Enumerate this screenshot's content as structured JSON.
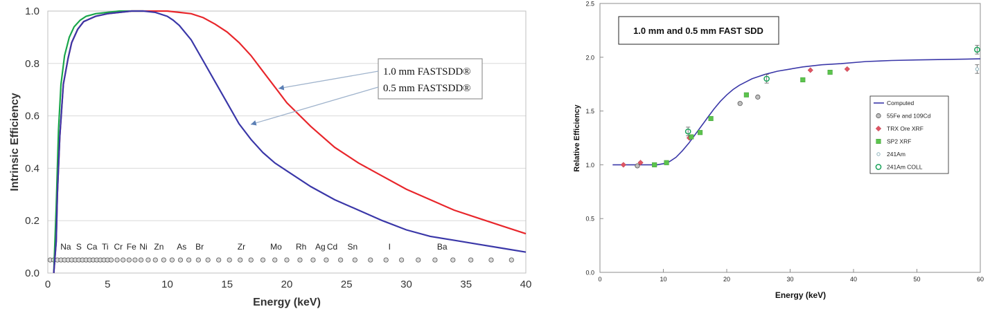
{
  "chart_data": [
    {
      "type": "line",
      "title": "",
      "xlabel": "Energy (keV)",
      "ylabel": "Intrinsic Efficiency",
      "xlim": [
        0,
        40
      ],
      "ylim": [
        0,
        1.0
      ],
      "x_ticks": [
        0,
        5,
        10,
        15,
        20,
        25,
        30,
        35,
        40
      ],
      "y_ticks": [
        0.0,
        0.2,
        0.4,
        0.6,
        0.8,
        1.0
      ],
      "x_tick_labels": [
        "0",
        "5",
        "10",
        "15",
        "20",
        "25",
        "30",
        "35",
        "40"
      ],
      "y_tick_labels": [
        "0.0",
        "0.2",
        "0.4",
        "0.6",
        "0.8",
        "1.0"
      ],
      "grid": "horizontal",
      "series": [
        {
          "name": "1.0 mm FASTSDD®",
          "color": "#e8262b",
          "x": [
            0.5,
            0.7,
            0.8,
            1.0,
            1.3,
            1.7,
            2.0,
            2.5,
            3.0,
            4.0,
            5.0,
            6.0,
            7.0,
            8.0,
            9.0,
            10.0,
            11.0,
            12.0,
            13.0,
            14.0,
            15.0,
            16.0,
            17.0,
            18.0,
            19.0,
            20.0,
            22.0,
            24.0,
            26.0,
            28.0,
            30.0,
            32.0,
            34.0,
            36.0,
            38.0,
            40.0
          ],
          "values": [
            0.0,
            0.12,
            0.3,
            0.52,
            0.72,
            0.82,
            0.88,
            0.93,
            0.96,
            0.98,
            0.99,
            0.995,
            1.0,
            1.0,
            1.0,
            1.0,
            0.995,
            0.99,
            0.975,
            0.95,
            0.92,
            0.88,
            0.83,
            0.77,
            0.71,
            0.65,
            0.56,
            0.48,
            0.42,
            0.37,
            0.32,
            0.28,
            0.24,
            0.21,
            0.18,
            0.15
          ]
        },
        {
          "name": "0.5 mm FASTSDD®",
          "color": "#3a37a8",
          "x": [
            0.5,
            0.7,
            0.8,
            1.0,
            1.3,
            1.7,
            2.0,
            2.5,
            3.0,
            4.0,
            5.0,
            6.0,
            7.0,
            8.0,
            9.0,
            10.0,
            10.5,
            11.0,
            12.0,
            13.0,
            14.0,
            15.0,
            16.0,
            17.0,
            18.0,
            19.0,
            20.0,
            22.0,
            24.0,
            26.0,
            28.0,
            30.0,
            32.0,
            34.0,
            36.0,
            38.0,
            40.0
          ],
          "values": [
            0.0,
            0.12,
            0.3,
            0.52,
            0.72,
            0.82,
            0.88,
            0.93,
            0.96,
            0.98,
            0.99,
            0.995,
            1.0,
            1.0,
            0.995,
            0.98,
            0.965,
            0.945,
            0.89,
            0.81,
            0.73,
            0.65,
            0.57,
            0.51,
            0.46,
            0.42,
            0.39,
            0.33,
            0.28,
            0.24,
            0.2,
            0.165,
            0.14,
            0.125,
            0.11,
            0.095,
            0.08
          ]
        },
        {
          "name": "green",
          "color": "#19a64a",
          "x": [
            0.5,
            0.7,
            0.9,
            1.1,
            1.4,
            1.8,
            2.2,
            2.7,
            3.2,
            4.0,
            5.0,
            6.0,
            7.0,
            8.0
          ],
          "values": [
            0.0,
            0.25,
            0.55,
            0.72,
            0.83,
            0.9,
            0.94,
            0.965,
            0.98,
            0.99,
            0.995,
            1.0,
            1.0,
            1.0
          ]
        }
      ],
      "legend_labels": [
        "1.0 mm FASTSDD®",
        "0.5 mm FASTSDD®"
      ],
      "element_labels": [
        {
          "label": "Na",
          "x": 1.5
        },
        {
          "label": "S",
          "x": 2.6
        },
        {
          "label": "Ca",
          "x": 3.7
        },
        {
          "label": "Ti",
          "x": 4.8
        },
        {
          "label": "Cr",
          "x": 5.9
        },
        {
          "label": "Fe",
          "x": 7.0
        },
        {
          "label": "Ni",
          "x": 8.0
        },
        {
          "label": "Zn",
          "x": 9.3
        },
        {
          "label": "As",
          "x": 11.2
        },
        {
          "label": "Br",
          "x": 12.7
        },
        {
          "label": "Zr",
          "x": 16.2
        },
        {
          "label": "Mo",
          "x": 19.1
        },
        {
          "label": "Rh",
          "x": 21.2
        },
        {
          "label": "Ag",
          "x": 22.8
        },
        {
          "label": "Cd",
          "x": 23.8
        },
        {
          "label": "Sn",
          "x": 25.5
        },
        {
          "label": "I",
          "x": 28.6
        },
        {
          "label": "Ba",
          "x": 33.0
        }
      ],
      "marker_row": {
        "y": 0.05,
        "x": [
          0.2,
          0.5,
          0.8,
          1.1,
          1.4,
          1.7,
          2.0,
          2.3,
          2.6,
          2.9,
          3.2,
          3.5,
          3.8,
          4.1,
          4.4,
          4.7,
          5.0,
          5.3,
          5.8,
          6.3,
          6.8,
          7.3,
          7.8,
          8.4,
          9.0,
          9.7,
          10.4,
          11.1,
          11.8,
          12.6,
          13.4,
          14.3,
          15.2,
          16.1,
          17.0,
          18.0,
          19.0,
          20.0,
          21.1,
          22.2,
          23.3,
          24.5,
          25.7,
          27.0,
          28.3,
          29.6,
          31.0,
          32.4,
          33.9,
          35.4,
          37.1,
          38.8
        ]
      }
    },
    {
      "type": "scatter",
      "title": "1.0 mm and 0.5 mm FAST SDD",
      "xlabel": "Energy (keV)",
      "ylabel": "Relative Efficiency",
      "xlim": [
        0,
        60
      ],
      "ylim": [
        0,
        2.5
      ],
      "x_ticks": [
        0,
        10,
        20,
        30,
        40,
        50,
        60
      ],
      "y_ticks": [
        0.0,
        0.5,
        1.0,
        1.5,
        2.0,
        2.5
      ],
      "x_tick_labels": [
        "0",
        "10",
        "20",
        "30",
        "40",
        "50",
        "60"
      ],
      "y_tick_labels": [
        "0.0",
        "0.5",
        "1.0",
        "1.5",
        "2.0",
        "2.5"
      ],
      "legend_position": "right",
      "series": [
        {
          "name": "Computed",
          "kind": "line",
          "color": "#3a37a8",
          "x": [
            2,
            4,
            6,
            8,
            9,
            10,
            11,
            12,
            13,
            14,
            15,
            16,
            17,
            18,
            19,
            20,
            21,
            22,
            23,
            24,
            25,
            26,
            28,
            30,
            32,
            35,
            38,
            42,
            46,
            50,
            55,
            60
          ],
          "values": [
            1.0,
            1.0,
            1.0,
            1.0,
            1.0,
            1.01,
            1.03,
            1.07,
            1.13,
            1.2,
            1.28,
            1.36,
            1.44,
            1.52,
            1.59,
            1.65,
            1.7,
            1.74,
            1.77,
            1.8,
            1.82,
            1.84,
            1.87,
            1.89,
            1.91,
            1.93,
            1.94,
            1.96,
            1.97,
            1.975,
            1.98,
            1.985
          ]
        },
        {
          "name": "55Fe and 109Cd",
          "kind": "circle",
          "color": "#7f7f7f",
          "x": [
            5.9,
            22.1,
            24.9
          ],
          "values": [
            0.99,
            1.57,
            1.63
          ]
        },
        {
          "name": "TRX Ore XRF",
          "kind": "diamond",
          "color": "#e05564",
          "x": [
            3.7,
            6.4,
            14.1,
            33.2,
            39.0
          ],
          "values": [
            1.0,
            1.02,
            1.25,
            1.88,
            1.89
          ]
        },
        {
          "name": "SP2 XRF",
          "kind": "square",
          "color": "#5cc44d",
          "x": [
            8.6,
            10.5,
            14.4,
            15.8,
            17.5,
            23.1,
            32.0,
            36.3
          ],
          "values": [
            1.0,
            1.02,
            1.26,
            1.3,
            1.43,
            1.65,
            1.79,
            1.86
          ]
        },
        {
          "name": "241Am",
          "kind": "small-circle",
          "color": "#8fb4bd",
          "x": [
            59.5
          ],
          "values": [
            1.89
          ]
        },
        {
          "name": "241Am COLL",
          "kind": "open-circle",
          "color": "#1ba35b",
          "x": [
            13.9,
            26.3,
            59.5
          ],
          "values": [
            1.31,
            1.8,
            2.07
          ]
        }
      ]
    }
  ]
}
